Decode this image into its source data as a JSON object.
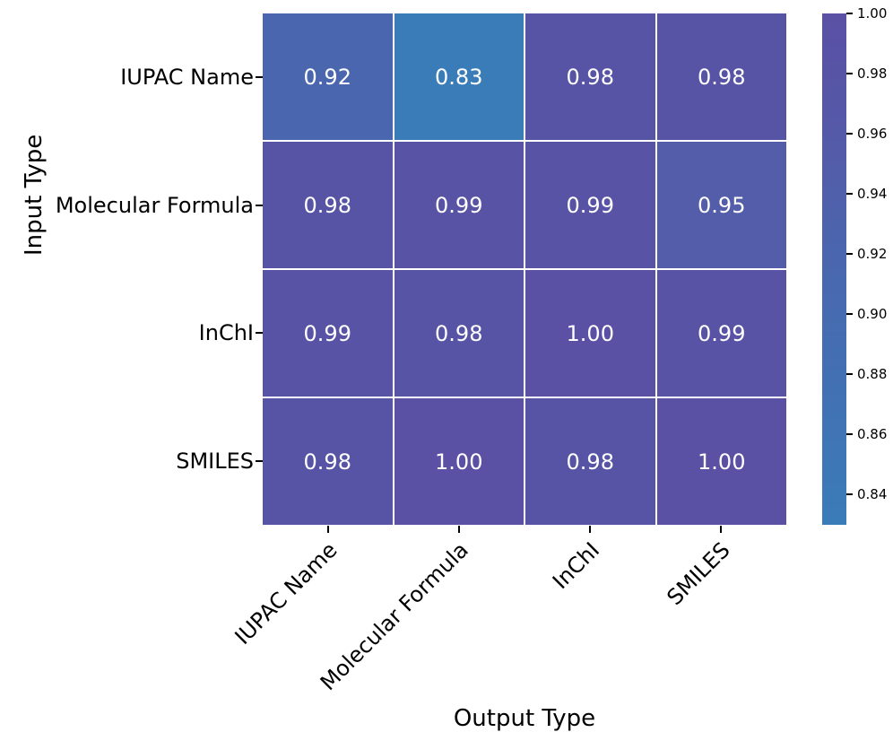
{
  "chart_data": {
    "type": "heatmap",
    "xlabel": "Output Type",
    "ylabel": "Input Type",
    "x_categories": [
      "IUPAC Name",
      "Molecular Formula",
      "InChI",
      "SMILES"
    ],
    "y_categories": [
      "IUPAC Name",
      "Molecular Formula",
      "InChI",
      "SMILES"
    ],
    "values": [
      [
        0.92,
        0.83,
        0.98,
        0.98
      ],
      [
        0.98,
        0.99,
        0.99,
        0.95
      ],
      [
        0.99,
        0.98,
        1.0,
        0.99
      ],
      [
        0.98,
        1.0,
        0.98,
        1.0
      ]
    ],
    "cell_label_decimals": 2,
    "annotation_text_color": "#ffffff",
    "grid_line_color": "#ffffff",
    "axis_text_color": "#000000",
    "colorbar": {
      "vmin": 0.83,
      "vmax": 1.0,
      "tick_values": [
        1.0,
        0.98,
        0.96,
        0.94,
        0.92,
        0.9,
        0.88,
        0.86,
        0.84
      ],
      "tick_label_decimals": 2
    },
    "colormap_anchors": [
      {
        "value": 0.83,
        "color": "#3a7cb8"
      },
      {
        "value": 0.92,
        "color": "#4a66ae"
      },
      {
        "value": 0.95,
        "color": "#535da9"
      },
      {
        "value": 0.98,
        "color": "#5754a6"
      },
      {
        "value": 1.0,
        "color": "#5a51a5"
      }
    ]
  }
}
